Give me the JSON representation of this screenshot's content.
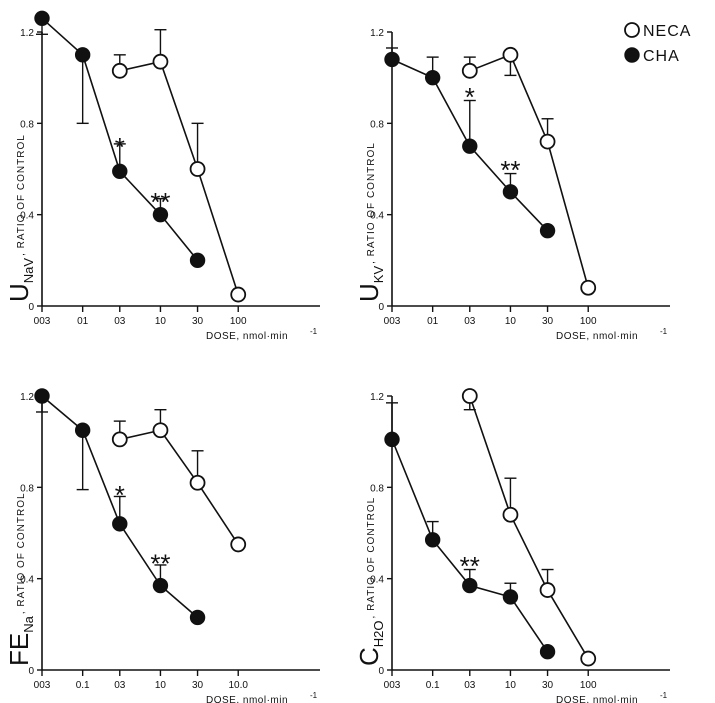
{
  "legend": {
    "items": [
      {
        "label": "NECA",
        "marker": "open"
      },
      {
        "label": "CHA",
        "marker": "filled"
      }
    ]
  },
  "colors": {
    "ink": "#111111",
    "paper": "#ffffff"
  },
  "chart_data": [
    {
      "type": "line",
      "ylabel": {
        "main": "U",
        "sub": "NaV",
        "small": ", RATIO OF CONTROL"
      },
      "xlabel": "DOSE, nmol·min",
      "xlabel_sup": "-1",
      "x_scale": "log",
      "xlim": [
        0.03,
        100
      ],
      "ylim": [
        0,
        1.2
      ],
      "x_ticks": [
        {
          "v": 0.03,
          "label": "003"
        },
        {
          "v": 0.1,
          "label": "01"
        },
        {
          "v": 0.3,
          "label": "03"
        },
        {
          "v": 1.0,
          "label": "10"
        },
        {
          "v": 3.0,
          "label": "30"
        },
        {
          "v": 10.0,
          "label": "100"
        }
      ],
      "y_ticks": [
        {
          "v": 0,
          "label": "0"
        },
        {
          "v": 0.4,
          "label": "0.4"
        },
        {
          "v": 0.8,
          "label": "0.8"
        },
        {
          "v": 1.2,
          "label": "1.2"
        }
      ],
      "series": [
        {
          "name": "NECA",
          "marker": "open",
          "x": [
            0.3,
            1.0,
            3.0,
            10.0
          ],
          "y": [
            1.03,
            1.07,
            0.6,
            0.05
          ],
          "err_upper": [
            1.1,
            1.21,
            0.8,
            null
          ]
        },
        {
          "name": "CHA",
          "marker": "filled",
          "x": [
            0.03,
            0.1,
            0.3,
            1.0,
            3.0
          ],
          "y": [
            1.26,
            1.1,
            0.59,
            0.4,
            0.2
          ],
          "err_upper": [
            null,
            null,
            0.71,
            0.47,
            null
          ],
          "err_lower": [
            1.19,
            0.8,
            null,
            null,
            null
          ]
        }
      ],
      "annotations": [
        {
          "text": "*",
          "x": 0.3,
          "y": 0.7
        },
        {
          "text": "**",
          "x": 1.0,
          "y": 0.46
        }
      ]
    },
    {
      "type": "line",
      "ylabel": {
        "main": "U",
        "sub": "KV",
        "small": ", RATIO OF CONTROL"
      },
      "xlabel": "DOSE, nmol·min",
      "xlabel_sup": "-1",
      "x_scale": "log",
      "xlim": [
        0.03,
        100
      ],
      "ylim": [
        0,
        1.2
      ],
      "x_ticks": [
        {
          "v": 0.03,
          "label": "003"
        },
        {
          "v": 0.1,
          "label": "01"
        },
        {
          "v": 0.3,
          "label": "03"
        },
        {
          "v": 1.0,
          "label": "10"
        },
        {
          "v": 3.0,
          "label": "30"
        },
        {
          "v": 10.0,
          "label": "100"
        }
      ],
      "y_ticks": [
        {
          "v": 0,
          "label": "0"
        },
        {
          "v": 0.4,
          "label": "0.4"
        },
        {
          "v": 0.8,
          "label": "0.8"
        },
        {
          "v": 1.2,
          "label": "1.2"
        }
      ],
      "series": [
        {
          "name": "NECA",
          "marker": "open",
          "x": [
            0.3,
            1.0,
            3.0,
            10.0
          ],
          "y": [
            1.03,
            1.1,
            0.72,
            0.08
          ],
          "err_upper": [
            1.09,
            null,
            0.82,
            null
          ],
          "err_lower": [
            null,
            1.01,
            null,
            null
          ]
        },
        {
          "name": "CHA",
          "marker": "filled",
          "x": [
            0.03,
            0.1,
            0.3,
            1.0,
            3.0
          ],
          "y": [
            1.08,
            1.0,
            0.7,
            0.5,
            0.33
          ],
          "err_upper": [
            1.13,
            1.09,
            0.9,
            0.58,
            null
          ]
        }
      ],
      "annotations": [
        {
          "text": "*",
          "x": 0.3,
          "y": 0.92
        },
        {
          "text": "**",
          "x": 1.0,
          "y": 0.6
        }
      ]
    },
    {
      "type": "line",
      "ylabel": {
        "main": "FE",
        "sub": "Na",
        "small": ", RATIO OF CONTROL"
      },
      "xlabel": "DOSE, nmol·min",
      "xlabel_sup": "-1",
      "x_scale": "log",
      "xlim": [
        0.03,
        100
      ],
      "ylim": [
        0,
        1.2
      ],
      "x_ticks": [
        {
          "v": 0.03,
          "label": "003"
        },
        {
          "v": 0.1,
          "label": "0.1"
        },
        {
          "v": 0.3,
          "label": "03"
        },
        {
          "v": 1.0,
          "label": "10"
        },
        {
          "v": 3.0,
          "label": "30"
        },
        {
          "v": 10.0,
          "label": "10.0"
        }
      ],
      "y_ticks": [
        {
          "v": 0,
          "label": "0"
        },
        {
          "v": 0.4,
          "label": "0.4"
        },
        {
          "v": 0.8,
          "label": "0.8"
        },
        {
          "v": 1.2,
          "label": "1.2"
        }
      ],
      "series": [
        {
          "name": "NECA",
          "marker": "open",
          "x": [
            0.3,
            1.0,
            3.0,
            10.0
          ],
          "y": [
            1.01,
            1.05,
            0.82,
            0.55
          ],
          "err_upper": [
            1.09,
            1.14,
            0.96,
            null
          ]
        },
        {
          "name": "CHA",
          "marker": "filled",
          "x": [
            0.03,
            0.1,
            0.3,
            1.0,
            3.0
          ],
          "y": [
            1.2,
            1.05,
            0.64,
            0.37,
            0.23
          ],
          "err_upper": [
            null,
            null,
            0.76,
            0.46,
            null
          ],
          "err_lower": [
            1.13,
            0.79,
            null,
            null,
            null
          ]
        }
      ],
      "annotations": [
        {
          "text": "*",
          "x": 0.3,
          "y": 0.77
        },
        {
          "text": "**",
          "x": 1.0,
          "y": 0.47
        }
      ]
    },
    {
      "type": "line",
      "ylabel": {
        "main": "C",
        "sub": "H2O",
        "small": ", RATIO OF CONTROL"
      },
      "xlabel": "DOSE, nmol·min",
      "xlabel_sup": "-1",
      "x_scale": "log",
      "xlim": [
        0.03,
        100
      ],
      "ylim": [
        0,
        1.2
      ],
      "x_ticks": [
        {
          "v": 0.03,
          "label": "003"
        },
        {
          "v": 0.1,
          "label": "0.1"
        },
        {
          "v": 0.3,
          "label": "03"
        },
        {
          "v": 1.0,
          "label": "10"
        },
        {
          "v": 3.0,
          "label": "30"
        },
        {
          "v": 10.0,
          "label": "100"
        }
      ],
      "y_ticks": [
        {
          "v": 0,
          "label": "0"
        },
        {
          "v": 0.4,
          "label": "0.4"
        },
        {
          "v": 0.8,
          "label": "0.8"
        },
        {
          "v": 1.2,
          "label": "1.2"
        }
      ],
      "series": [
        {
          "name": "NECA",
          "marker": "open",
          "x": [
            0.3,
            1.0,
            3.0,
            10.0
          ],
          "y": [
            1.2,
            0.68,
            0.35,
            0.05
          ],
          "err_upper": [
            null,
            0.84,
            0.44,
            null
          ],
          "err_lower": [
            1.14,
            null,
            null,
            null
          ]
        },
        {
          "name": "CHA",
          "marker": "filled",
          "x": [
            0.03,
            0.1,
            0.3,
            1.0,
            3.0
          ],
          "y": [
            1.01,
            0.57,
            0.37,
            0.32,
            0.08
          ],
          "err_upper": [
            1.17,
            0.65,
            0.44,
            0.38,
            null
          ]
        }
      ],
      "annotations": [
        {
          "text": "**",
          "x": 0.3,
          "y": 0.46
        }
      ]
    }
  ]
}
